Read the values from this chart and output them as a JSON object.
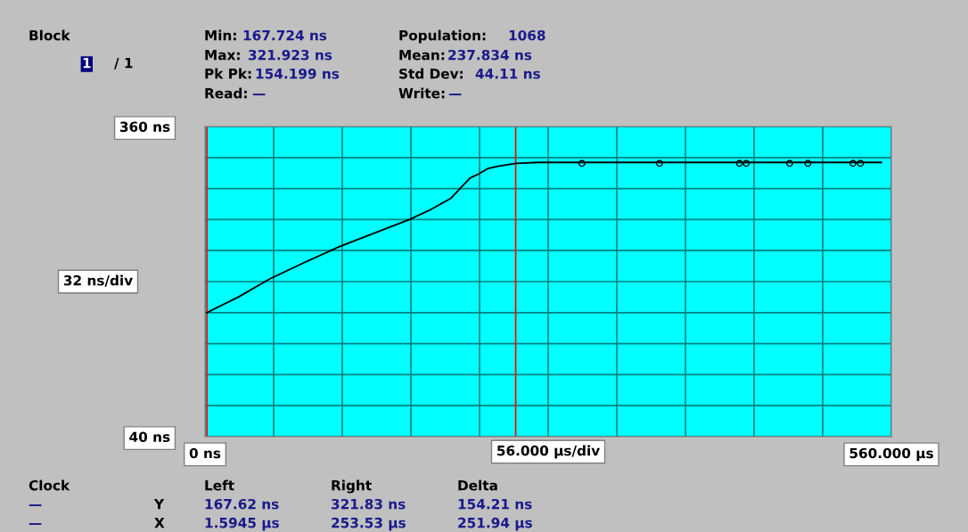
{
  "chart_data": {
    "type": "line",
    "x": [
      1.6,
      27.2,
      53.1,
      81.6,
      109.5,
      138.1,
      166.7,
      183.7,
      200.7,
      209.6,
      216.4,
      223.2,
      231.3,
      238.8,
      253.5,
      272.2,
      551.8
    ],
    "series": [
      {
        "type": "line",
        "color": "#000000",
        "values": [
          168,
          184,
          203,
          220,
          236,
          250,
          264,
          274,
          286,
          298,
          307,
          311,
          317,
          319,
          322,
          323,
          323
        ]
      },
      {
        "type": "scatter",
        "marker": "circle",
        "color": "#000000",
        "x": [
          307.5,
          370.8,
          436.1,
          441.6,
          477.0,
          491.9,
          528.7,
          534.8
        ],
        "values": [
          322,
          322,
          322,
          322,
          322,
          322,
          322,
          322
        ]
      }
    ],
    "xlim": [
      0,
      560
    ],
    "xticks": [
      {
        "value": 0,
        "label": "0 ns"
      },
      {
        "value": 56,
        "label": null
      },
      {
        "value": 112,
        "label": null
      },
      {
        "value": 168,
        "label": null
      },
      {
        "value": 224,
        "label": null
      },
      {
        "value": 280,
        "label": null
      },
      {
        "value": 336,
        "label": null
      },
      {
        "value": 392,
        "label": null
      },
      {
        "value": 448,
        "label": null
      },
      {
        "value": 504,
        "label": null
      },
      {
        "value": 560,
        "label": "560.000 µs"
      }
    ],
    "ylim": [
      40,
      360
    ],
    "yticks": [
      {
        "value": 40,
        "label": "40 ns"
      },
      {
        "value": 72,
        "label": null
      },
      {
        "value": 104,
        "label": null
      },
      {
        "value": 136,
        "label": null
      },
      {
        "value": 168,
        "label": null
      },
      {
        "value": 200,
        "label": null
      },
      {
        "value": 232,
        "label": null
      },
      {
        "value": 264,
        "label": null
      },
      {
        "value": 296,
        "label": null
      },
      {
        "value": 328,
        "label": null
      },
      {
        "value": 360,
        "label": "360 ns"
      }
    ],
    "grid": true,
    "ref_lines": [
      {
        "axis": "x",
        "value": 1.6,
        "color": "#ff0000"
      },
      {
        "axis": "x",
        "value": 253.5,
        "color": "#ff0000"
      }
    ],
    "annotations": [
      "Block",
      "1",
      "/ 1",
      "Min:",
      "167.724 ns",
      "Max:",
      "321.923 ns",
      "Pk Pk:",
      "154.199 ns",
      "Read:",
      "—",
      "Population:",
      "1068",
      "Mean:",
      "237.834 ns",
      "Std Dev:",
      "44.11 ns",
      "Write:",
      "—",
      "Clock",
      "Left",
      "Right",
      "Delta",
      "—",
      "Y",
      "167.62 ns",
      "321.83 ns",
      "154.21 ns",
      "—",
      "X",
      "1.5945 µs",
      "253.53 µs",
      "251.94 µs",
      "32 ns/div",
      "56.000 µs/div"
    ]
  }
}
